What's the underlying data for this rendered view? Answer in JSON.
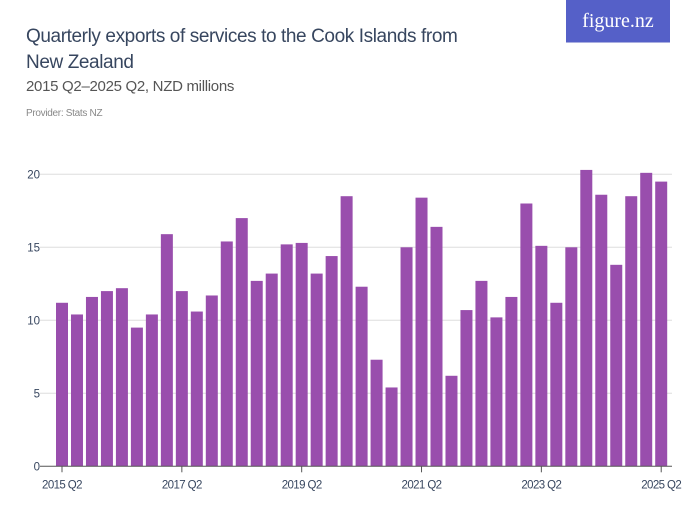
{
  "title": "Quarterly exports of services to the Cook Islands from New Zealand",
  "subtitle": "2015 Q2–2025 Q2, NZD millions",
  "provider": "Provider: Stats NZ",
  "logo": "figure.nz",
  "colors": {
    "bar": "#994ead",
    "title": "#37465f",
    "logo_bg": "#5560c8",
    "grid": "#dddddd"
  },
  "chart_data": {
    "type": "bar",
    "xlabel": "",
    "ylabel": "",
    "ylim": [
      0,
      20
    ],
    "yticks": [
      0,
      5,
      10,
      15,
      20
    ],
    "xtick_labels": [
      "2015 Q2",
      "2017 Q2",
      "2019 Q2",
      "2021 Q2",
      "2023 Q2",
      "2025 Q2"
    ],
    "grid": true,
    "categories": [
      "2015 Q2",
      "2015 Q3",
      "2015 Q4",
      "2016 Q1",
      "2016 Q2",
      "2016 Q3",
      "2016 Q4",
      "2017 Q1",
      "2017 Q2",
      "2017 Q3",
      "2017 Q4",
      "2018 Q1",
      "2018 Q2",
      "2018 Q3",
      "2018 Q4",
      "2019 Q1",
      "2019 Q2",
      "2019 Q3",
      "2019 Q4",
      "2020 Q1",
      "2020 Q2",
      "2020 Q3",
      "2020 Q4",
      "2021 Q1",
      "2021 Q2",
      "2021 Q3",
      "2021 Q4",
      "2022 Q1",
      "2022 Q2",
      "2022 Q3",
      "2022 Q4",
      "2023 Q1",
      "2023 Q2",
      "2023 Q3",
      "2023 Q4",
      "2024 Q1",
      "2024 Q2",
      "2024 Q3",
      "2024 Q4",
      "2025 Q1",
      "2025 Q2"
    ],
    "values": [
      11.2,
      10.4,
      11.6,
      12.0,
      12.2,
      9.5,
      10.4,
      15.9,
      12.0,
      10.6,
      11.7,
      15.4,
      17.0,
      12.7,
      13.2,
      15.2,
      15.3,
      13.2,
      14.4,
      18.5,
      12.3,
      7.3,
      5.4,
      15.0,
      18.4,
      16.4,
      6.2,
      10.7,
      12.7,
      10.2,
      11.6,
      18.0,
      15.1,
      11.2,
      15.0,
      20.3,
      18.6,
      13.8,
      18.5,
      20.1,
      19.5
    ]
  }
}
